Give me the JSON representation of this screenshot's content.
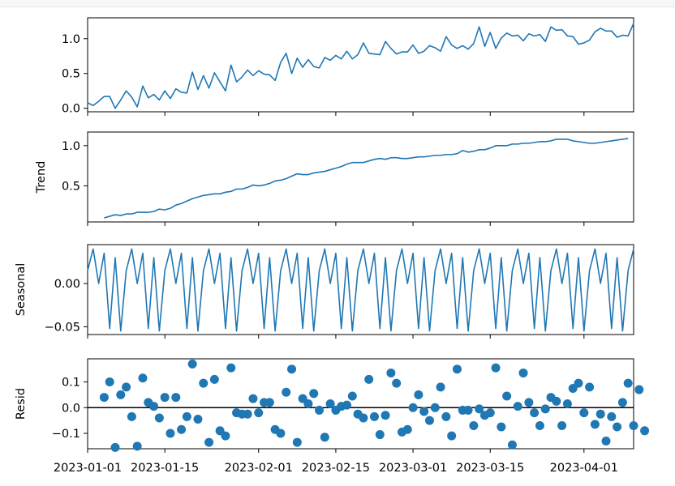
{
  "chart_data": [
    {
      "type": "line",
      "ylabel": "",
      "ylim": [
        -0.05,
        1.3
      ],
      "yticks": [
        "0.0",
        "0.5",
        "1.0"
      ],
      "ytick_values": [
        0.0,
        0.5,
        1.0
      ],
      "color": "#1f77b4",
      "x_start": "2023-01-01",
      "values": [
        0.08,
        0.04,
        0.1,
        0.17,
        0.17,
        0.0,
        0.12,
        0.25,
        0.16,
        0.02,
        0.32,
        0.15,
        0.2,
        0.12,
        0.25,
        0.14,
        0.28,
        0.23,
        0.22,
        0.52,
        0.27,
        0.47,
        0.29,
        0.51,
        0.38,
        0.25,
        0.62,
        0.38,
        0.45,
        0.55,
        0.47,
        0.54,
        0.49,
        0.48,
        0.4,
        0.66,
        0.79,
        0.5,
        0.72,
        0.59,
        0.7,
        0.6,
        0.58,
        0.73,
        0.69,
        0.76,
        0.71,
        0.82,
        0.71,
        0.77,
        0.94,
        0.79,
        0.78,
        0.77,
        0.96,
        0.86,
        0.78,
        0.81,
        0.81,
        0.91,
        0.79,
        0.82,
        0.9,
        0.87,
        0.82,
        1.03,
        0.91,
        0.86,
        0.9,
        0.85,
        0.93,
        1.17,
        0.89,
        1.09,
        0.86,
        1.01,
        1.08,
        1.04,
        1.05,
        0.97,
        1.07,
        1.04,
        1.06,
        0.96,
        1.17,
        1.12,
        1.13,
        1.04,
        1.03,
        0.92,
        0.94,
        0.98,
        1.1,
        1.15,
        1.11,
        1.11,
        1.02,
        1.05,
        1.04,
        1.22
      ]
    },
    {
      "type": "line",
      "ylabel": "Trend",
      "ylim": [
        0.05,
        1.17
      ],
      "yticks": [
        "0.5",
        "1.0"
      ],
      "ytick_values": [
        0.5,
        1.0
      ],
      "color": "#1f77b4",
      "x_start": "2023-01-04",
      "values": [
        0.1,
        0.12,
        0.14,
        0.13,
        0.15,
        0.15,
        0.17,
        0.17,
        0.17,
        0.18,
        0.21,
        0.2,
        0.22,
        0.26,
        0.28,
        0.31,
        0.34,
        0.36,
        0.38,
        0.39,
        0.4,
        0.4,
        0.42,
        0.43,
        0.46,
        0.46,
        0.48,
        0.51,
        0.5,
        0.51,
        0.53,
        0.56,
        0.57,
        0.59,
        0.62,
        0.65,
        0.64,
        0.64,
        0.66,
        0.67,
        0.68,
        0.7,
        0.72,
        0.74,
        0.77,
        0.79,
        0.79,
        0.79,
        0.81,
        0.83,
        0.84,
        0.83,
        0.85,
        0.85,
        0.84,
        0.84,
        0.85,
        0.86,
        0.86,
        0.87,
        0.88,
        0.88,
        0.89,
        0.89,
        0.9,
        0.94,
        0.92,
        0.93,
        0.95,
        0.95,
        0.97,
        1.0,
        1.0,
        1.0,
        1.02,
        1.02,
        1.03,
        1.03,
        1.04,
        1.05,
        1.05,
        1.06,
        1.08,
        1.08,
        1.08,
        1.06,
        1.05,
        1.04,
        1.03,
        1.03,
        1.04,
        1.05,
        1.06,
        1.07,
        1.08,
        1.09
      ]
    },
    {
      "type": "line",
      "ylabel": "Seasonal",
      "ylim": [
        -0.059,
        0.045
      ],
      "yticks": [
        "0.00",
        "−0.05"
      ],
      "ytick_values": [
        0.0,
        -0.05
      ],
      "color": "#1f77b4",
      "x_start": "2023-01-01",
      "period": 7,
      "values": [
        0.015,
        0.04,
        0.0,
        0.035,
        -0.052,
        0.03,
        -0.055,
        0.015,
        0.04,
        0.0,
        0.035,
        -0.052,
        0.03,
        -0.055,
        0.015,
        0.04,
        0.0,
        0.035,
        -0.052,
        0.03,
        -0.055,
        0.015,
        0.04,
        0.0,
        0.035,
        -0.052,
        0.03,
        -0.055,
        0.015,
        0.04,
        0.0,
        0.035,
        -0.052,
        0.03,
        -0.055,
        0.015,
        0.04,
        0.0,
        0.035,
        -0.052,
        0.03,
        -0.055,
        0.015,
        0.04,
        0.0,
        0.035,
        -0.052,
        0.03,
        -0.055,
        0.015,
        0.04,
        0.0,
        0.035,
        -0.052,
        0.03,
        -0.055,
        0.015,
        0.04,
        0.0,
        0.035,
        -0.052,
        0.03,
        -0.055,
        0.015,
        0.04,
        0.0,
        0.035,
        -0.052,
        0.03,
        -0.055,
        0.015,
        0.04,
        0.0,
        0.035,
        -0.052,
        0.03,
        -0.055,
        0.015,
        0.04,
        0.0,
        0.035,
        -0.052,
        0.03,
        -0.055,
        0.015,
        0.04,
        0.0,
        0.035,
        -0.052,
        0.03,
        -0.055,
        0.015,
        0.04,
        0.0,
        0.035,
        -0.052,
        0.03,
        -0.055,
        0.015,
        0.04
      ]
    },
    {
      "type": "scatter",
      "ylabel": "Resid",
      "ylim": [
        -0.16,
        0.19
      ],
      "yticks": [
        "0.1",
        "0.0",
        "−0.1"
      ],
      "ytick_values": [
        0.1,
        0.0,
        -0.1
      ],
      "color": "#1f77b4",
      "zero_line": true,
      "x_start": "2023-01-04",
      "values": [
        0.04,
        0.1,
        -0.155,
        0.05,
        0.08,
        -0.035,
        -0.15,
        0.115,
        0.02,
        0.005,
        -0.04,
        0.04,
        -0.1,
        0.04,
        -0.085,
        -0.035,
        0.17,
        -0.045,
        0.095,
        -0.135,
        0.11,
        -0.09,
        -0.11,
        0.155,
        -0.02,
        -0.025,
        -0.025,
        0.035,
        -0.02,
        0.02,
        0.02,
        -0.085,
        -0.1,
        0.06,
        0.15,
        -0.135,
        0.035,
        0.015,
        0.055,
        -0.01,
        -0.115,
        0.015,
        -0.01,
        0.005,
        0.01,
        0.045,
        -0.025,
        -0.04,
        0.11,
        -0.035,
        -0.105,
        -0.03,
        0.135,
        0.095,
        -0.095,
        -0.085,
        0.0,
        0.05,
        -0.015,
        -0.05,
        0.0,
        0.08,
        -0.035,
        -0.11,
        0.15,
        -0.01,
        -0.01,
        -0.07,
        -0.005,
        -0.03,
        -0.02,
        0.155,
        -0.075,
        0.045,
        -0.145,
        0.005,
        0.135,
        0.02,
        -0.02,
        -0.07,
        -0.005,
        0.04,
        0.025,
        -0.07,
        0.015,
        0.075,
        0.095,
        -0.02,
        0.08,
        -0.065,
        -0.025,
        -0.13,
        -0.035,
        -0.075,
        0.02,
        0.095,
        -0.07,
        0.07,
        -0.09
      ]
    }
  ],
  "x_axis": {
    "range": [
      "2023-01-01",
      "2023-04-10"
    ],
    "ticks": [
      {
        "date": "2023-01-01",
        "label": "2023-01-01"
      },
      {
        "date": "2023-01-15",
        "label": "2023-01-15"
      },
      {
        "date": "2023-02-01",
        "label": "2023-02-01"
      },
      {
        "date": "2023-02-15",
        "label": "2023-02-15"
      },
      {
        "date": "2023-03-01",
        "label": "2023-03-01"
      },
      {
        "date": "2023-03-15",
        "label": "2023-03-15"
      },
      {
        "date": "2023-04-01",
        "label": "2023-04-01"
      }
    ]
  }
}
